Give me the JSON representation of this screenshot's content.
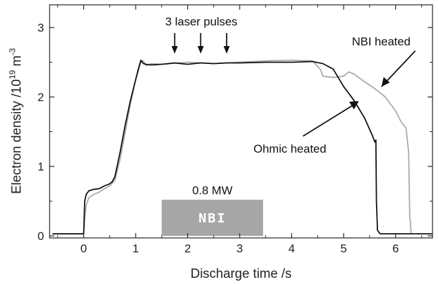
{
  "chart_data": {
    "type": "line",
    "xlabel": "Discharge time /s",
    "ylabel": {
      "main": "Electron density /10",
      "exp1": "19",
      "unit": " m",
      "exp2": "-3"
    },
    "xlim": [
      -0.7,
      6.7
    ],
    "ylim": [
      -0.05,
      3.3
    ],
    "xticks": [
      0,
      1,
      2,
      3,
      4,
      5,
      6
    ],
    "yticks": [
      0,
      1,
      2,
      3
    ],
    "series": [
      {
        "color": "#111111",
        "x": [
          -0.6,
          0.0,
          0.02,
          0.05,
          0.1,
          0.2,
          0.3,
          0.4,
          0.5,
          0.55,
          0.6,
          0.7,
          0.8,
          0.9,
          1.0,
          1.05,
          1.1,
          1.15,
          1.2,
          1.3,
          1.5,
          1.75,
          2.0,
          2.25,
          2.5,
          2.75,
          3.0,
          3.5,
          4.0,
          4.4,
          4.6,
          4.8,
          5.0,
          5.2,
          5.4,
          5.55,
          5.6,
          5.62,
          5.63,
          5.65,
          5.7,
          6.0,
          6.7
        ],
        "y": [
          0.03,
          0.03,
          0.5,
          0.6,
          0.65,
          0.67,
          0.68,
          0.72,
          0.75,
          0.78,
          0.85,
          1.2,
          1.6,
          1.95,
          2.25,
          2.4,
          2.53,
          2.48,
          2.47,
          2.46,
          2.47,
          2.49,
          2.47,
          2.49,
          2.48,
          2.49,
          2.49,
          2.5,
          2.5,
          2.51,
          2.48,
          2.4,
          2.15,
          1.95,
          1.7,
          1.45,
          1.35,
          1.38,
          0.5,
          0.08,
          0.03,
          0.03,
          0.03
        ]
      },
      {
        "color": "#aaaaaa",
        "x": [
          -0.6,
          0.0,
          0.02,
          0.05,
          0.1,
          0.2,
          0.3,
          0.4,
          0.5,
          0.6,
          0.7,
          0.8,
          0.9,
          1.0,
          1.1,
          1.15,
          1.2,
          1.3,
          1.5,
          2.0,
          2.5,
          3.0,
          3.5,
          4.0,
          4.4,
          4.55,
          4.6,
          4.8,
          5.0,
          5.1,
          5.2,
          5.4,
          5.6,
          5.8,
          6.0,
          6.1,
          6.2,
          6.25,
          6.27,
          6.3
        ],
        "y": [
          0.03,
          0.03,
          0.25,
          0.45,
          0.55,
          0.6,
          0.63,
          0.68,
          0.72,
          0.8,
          1.1,
          1.5,
          1.9,
          2.25,
          2.5,
          2.52,
          2.45,
          2.48,
          2.47,
          2.5,
          2.48,
          2.5,
          2.52,
          2.53,
          2.52,
          2.4,
          2.3,
          2.28,
          2.3,
          2.36,
          2.33,
          2.22,
          2.12,
          2.0,
          1.8,
          1.65,
          1.55,
          1.2,
          0.3,
          0.03
        ]
      }
    ],
    "annotations": {
      "pulses_label": "3 laser pulses",
      "pulse_times": [
        1.75,
        2.25,
        2.75
      ],
      "nbi_power": "0.8 MW",
      "nbi_label": "NBI",
      "nbi_start": 1.5,
      "nbi_end": 3.45,
      "nbi_height": 0.52,
      "nbi_heated": "NBI heated",
      "ohmic_heated": "Ohmic heated"
    }
  }
}
